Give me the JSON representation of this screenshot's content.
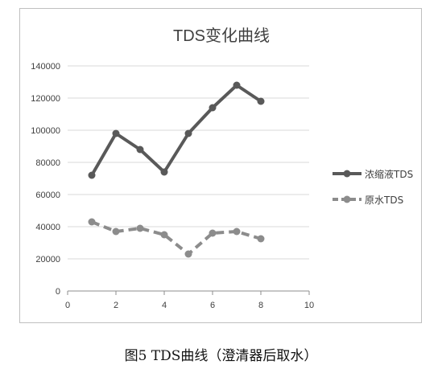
{
  "chart_data": {
    "type": "line",
    "title": "TDS变化曲线",
    "xlim": [
      0,
      10
    ],
    "ylim": [
      0,
      140000
    ],
    "x_ticks": [
      "0",
      "2",
      "4",
      "6",
      "8",
      "10"
    ],
    "y_ticks": [
      "0",
      "20000",
      "40000",
      "60000",
      "80000",
      "100000",
      "120000",
      "140000"
    ],
    "grid": "horizontal",
    "legend_position": "right",
    "series": [
      {
        "name": "浓缩液TDS",
        "color": "#595959",
        "line_style": "solid",
        "x": [
          1,
          2,
          3,
          4,
          5,
          6,
          7,
          8
        ],
        "y": [
          72000,
          98000,
          88000,
          74000,
          98000,
          114000,
          128000,
          118000
        ]
      },
      {
        "name": "原水TDS",
        "color": "#8c8c8c",
        "line_style": "dashed",
        "x": [
          1,
          2,
          3,
          4,
          5,
          6,
          7,
          8
        ],
        "y": [
          43000,
          37000,
          39000,
          35000,
          23000,
          36000,
          37000,
          32500
        ]
      }
    ]
  },
  "caption": "图5 TDS曲线（澄清器后取水）"
}
